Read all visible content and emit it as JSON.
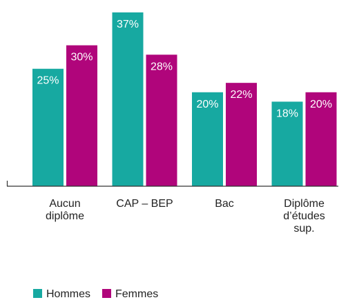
{
  "chart_data": {
    "type": "bar",
    "categories": [
      "Aucun\ndiplôme",
      "CAP – BEP",
      "Bac",
      "Diplôme\nd’études\nsup."
    ],
    "series": [
      {
        "name": "Hommes",
        "color": "#17a9a1",
        "values": [
          25,
          37,
          20,
          18
        ],
        "value_labels": [
          "25%",
          "37%",
          "20%",
          "18%"
        ]
      },
      {
        "name": "Femmes",
        "color": "#b0057b",
        "values": [
          30,
          28,
          22,
          20
        ],
        "value_labels": [
          "30%",
          "28%",
          "22%",
          "20%"
        ]
      }
    ],
    "ylim": [
      0,
      37
    ],
    "legend": "bottom-left"
  }
}
